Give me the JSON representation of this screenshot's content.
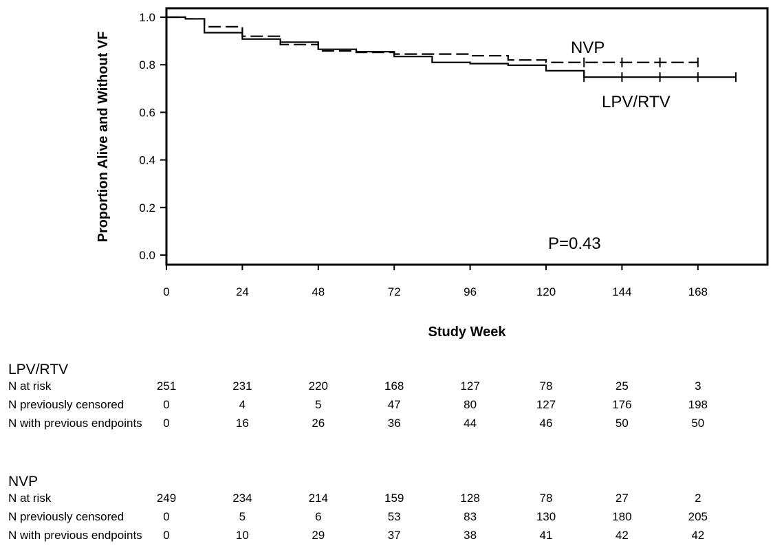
{
  "chart_data": {
    "type": "line",
    "title": "",
    "xlabel": "Study Week",
    "ylabel": "Proportion Alive and Without VF",
    "xlim": [
      0,
      190
    ],
    "ylim": [
      0.0,
      1.0
    ],
    "x_ticks": [
      "0",
      "24",
      "48",
      "72",
      "96",
      "120",
      "144",
      "168"
    ],
    "y_ticks": [
      "0.0",
      "0.2",
      "0.4",
      "0.6",
      "0.8",
      "1.0"
    ],
    "series": [
      {
        "name": "LPV/RTV",
        "style": "solid",
        "steps": [
          [
            0,
            1.0
          ],
          [
            6,
            0.993
          ],
          [
            12,
            0.935
          ],
          [
            24,
            0.908
          ],
          [
            36,
            0.895
          ],
          [
            48,
            0.865
          ],
          [
            60,
            0.855
          ],
          [
            72,
            0.835
          ],
          [
            84,
            0.81
          ],
          [
            96,
            0.805
          ],
          [
            108,
            0.798
          ],
          [
            120,
            0.775
          ],
          [
            132,
            0.748
          ],
          [
            180,
            0.748
          ]
        ],
        "censor_marks": [
          132,
          144,
          156,
          168,
          180
        ]
      },
      {
        "name": "NVP",
        "style": "dashed",
        "steps": [
          [
            0,
            1.0
          ],
          [
            6,
            0.993
          ],
          [
            12,
            0.96
          ],
          [
            24,
            0.92
          ],
          [
            36,
            0.885
          ],
          [
            48,
            0.858
          ],
          [
            60,
            0.852
          ],
          [
            72,
            0.845
          ],
          [
            96,
            0.838
          ],
          [
            108,
            0.82
          ],
          [
            120,
            0.81
          ],
          [
            168,
            0.81
          ]
        ],
        "censor_marks": [
          132,
          144,
          156,
          168
        ]
      }
    ],
    "annotations": [
      "NVP",
      "LPV/RTV",
      "P=0.43"
    ],
    "grid": false
  },
  "risk_table": {
    "groups": [
      {
        "title": "LPV/RTV",
        "rows": [
          {
            "label": "N at risk",
            "values": [
              "251",
              "231",
              "220",
              "168",
              "127",
              "78",
              "25",
              "3"
            ]
          },
          {
            "label": "N previously censored",
            "values": [
              "0",
              "4",
              "5",
              "47",
              "80",
              "127",
              "176",
              "198"
            ]
          },
          {
            "label": "N with previous endpoints",
            "values": [
              "0",
              "16",
              "26",
              "36",
              "44",
              "46",
              "50",
              "50"
            ]
          }
        ]
      },
      {
        "title": "NVP",
        "rows": [
          {
            "label": "N at risk",
            "values": [
              "249",
              "234",
              "214",
              "159",
              "128",
              "78",
              "27",
              "2"
            ]
          },
          {
            "label": "N previously censored",
            "values": [
              "0",
              "5",
              "6",
              "53",
              "83",
              "130",
              "180",
              "205"
            ]
          },
          {
            "label": "N with previous endpoints",
            "values": [
              "0",
              "10",
              "29",
              "37",
              "38",
              "41",
              "42",
              "42"
            ]
          }
        ]
      }
    ]
  }
}
